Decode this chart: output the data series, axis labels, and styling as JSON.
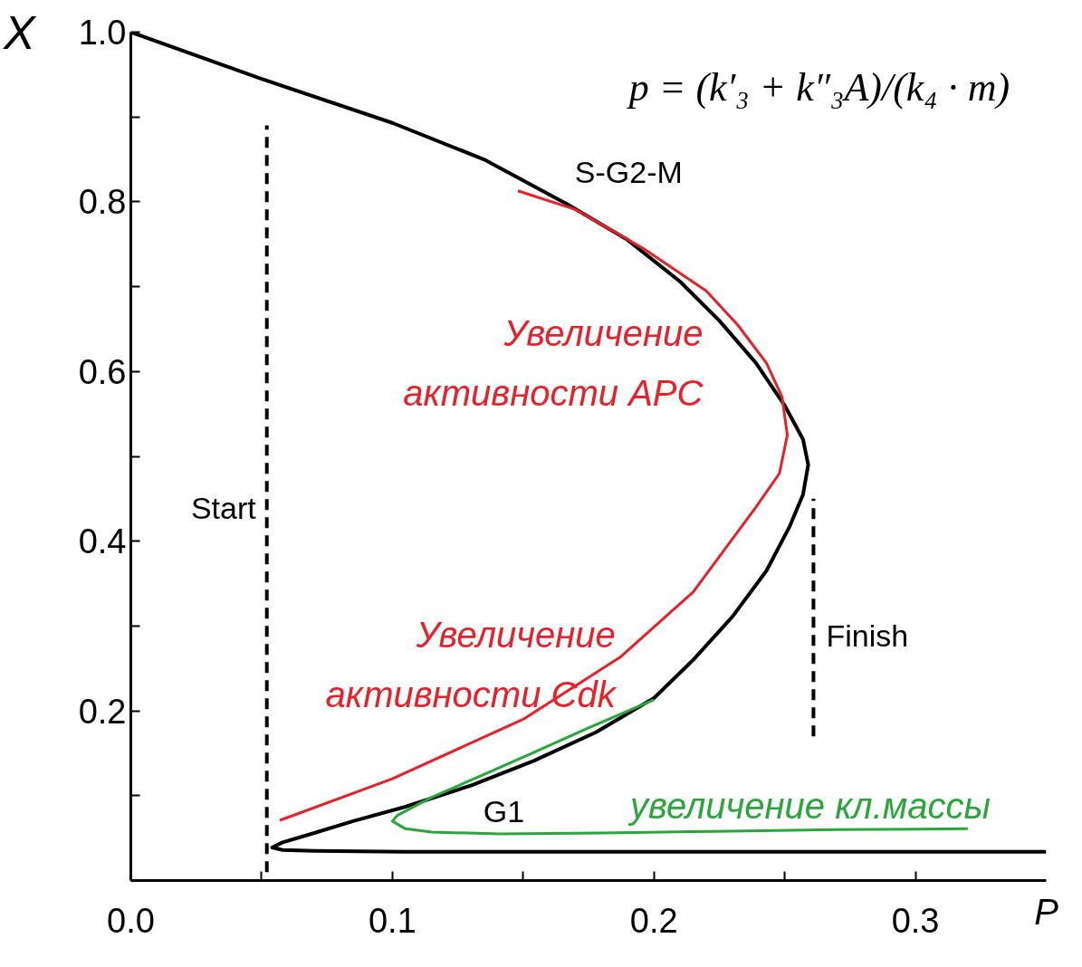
{
  "chart_data": {
    "type": "line",
    "xlabel": "P",
    "ylabel": "X",
    "xlim": [
      0,
      0.35
    ],
    "ylim": [
      0,
      1
    ],
    "xticks": [
      {
        "value": 0,
        "label": "0.0"
      },
      {
        "value": 0.05,
        "label": null
      },
      0.1,
      {
        "value": 0.15,
        "label": null
      },
      0.2,
      {
        "value": 0.25,
        "label": null
      },
      0.3
    ],
    "yticks": [
      {
        "value": 0.1,
        "label": null
      },
      0.2,
      {
        "value": 0.3,
        "label": null
      },
      0.4,
      {
        "value": 0.5,
        "label": null
      },
      0.6,
      {
        "value": 0.7,
        "label": null
      },
      0.8,
      {
        "value": 0.9,
        "label": null
      },
      {
        "value": 1,
        "label": "1.0"
      }
    ],
    "grid": false,
    "line_style": "solid",
    "series": [
      {
        "color": "#000000",
        "x": [
          0,
          0.05,
          0.1,
          0.135,
          0.167,
          0.19,
          0.21,
          0.225,
          0.239,
          0.25,
          0.257,
          0.259,
          0.257,
          0.252,
          0.243,
          0.23,
          0.215,
          0.2,
          0.178,
          0.154,
          0.13,
          0.105,
          0.085,
          0.069,
          0.058,
          0.054,
          0.058,
          0.07,
          0.105,
          0.2,
          0.35
        ],
        "values": [
          1.0,
          0.945,
          0.893,
          0.85,
          0.797,
          0.755,
          0.706,
          0.66,
          0.61,
          0.56,
          0.52,
          0.49,
          0.455,
          0.418,
          0.365,
          0.311,
          0.26,
          0.215,
          0.175,
          0.141,
          0.112,
          0.087,
          0.07,
          0.055,
          0.045,
          0.039,
          0.036,
          0.035,
          0.034,
          0.034,
          0.034
        ]
      },
      {
        "color": "#e8202a",
        "x": [
          0.057,
          0.1,
          0.15,
          0.187,
          0.215,
          0.239,
          0.248,
          0.251,
          0.249,
          0.243,
          0.232,
          0.22,
          0.196,
          0.17,
          0.148
        ],
        "values": [
          0.071,
          0.12,
          0.19,
          0.263,
          0.34,
          0.44,
          0.48,
          0.525,
          0.57,
          0.61,
          0.655,
          0.695,
          0.745,
          0.791,
          0.813
        ]
      },
      {
        "color": "#2aa63c",
        "x": [
          0.32,
          0.27,
          0.223,
          0.18,
          0.141,
          0.115,
          0.105,
          0.1,
          0.102,
          0.115,
          0.135,
          0.154,
          0.175,
          0.2
        ],
        "values": [
          0.061,
          0.06,
          0.058,
          0.056,
          0.055,
          0.057,
          0.061,
          0.07,
          0.077,
          0.098,
          0.125,
          0.151,
          0.18,
          0.213
        ]
      },
      {
        "name": "Start",
        "color": "#000000",
        "x": [
          0.052,
          0.052
        ],
        "values": [
          0.01,
          0.89
        ],
        "line_style": "dashed"
      },
      {
        "name": "Finish",
        "color": "#000000",
        "x": [
          0.261,
          0.261
        ],
        "values": [
          0.17,
          0.45
        ],
        "line_style": "dashed"
      }
    ],
    "annotations": [
      "p = (k′₃ + k″₃A)/(k₄ · m)",
      "S-G2-M",
      "G1",
      {
        "text": "Увеличение активности APC",
        "x": 0.243,
        "y": 0.61
      },
      {
        "text": "Увеличение активности Cdk",
        "x": 0.187,
        "y": 0.263
      },
      {
        "text": "увеличение кл.массы",
        "x": 0.32,
        "y": 0.061
      }
    ]
  }
}
